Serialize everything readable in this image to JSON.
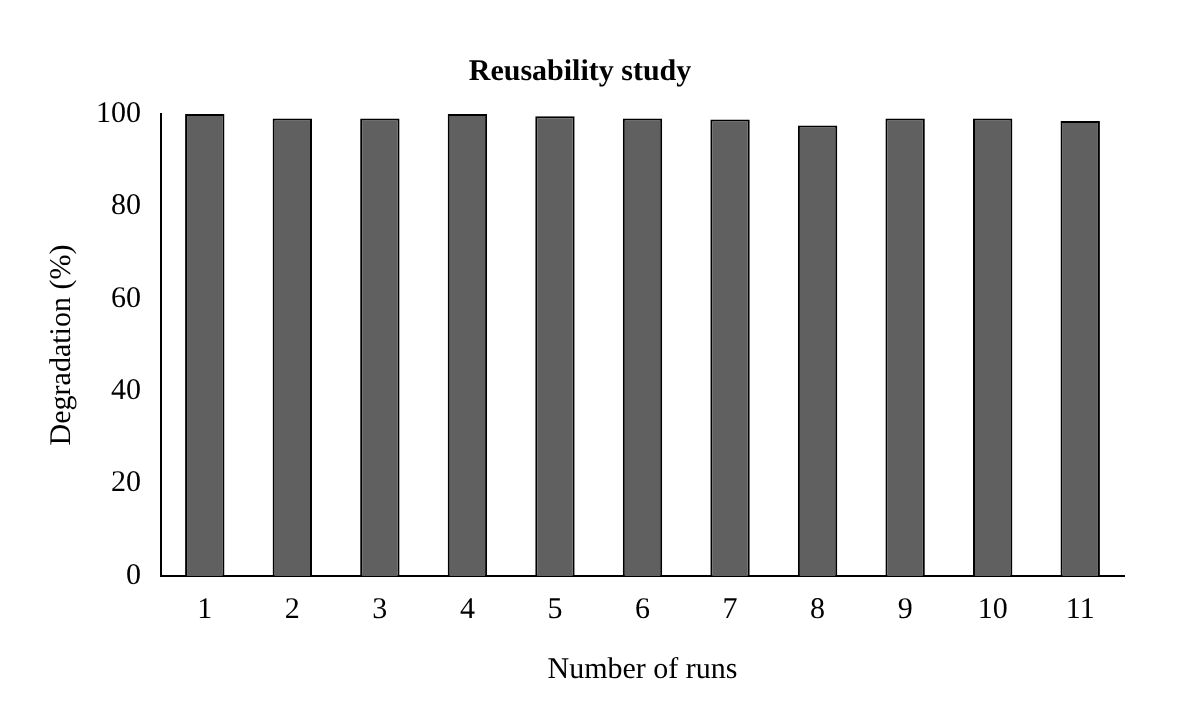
{
  "chart_data": {
    "type": "bar",
    "title": "Reusability study",
    "xlabel": "Number of runs",
    "ylabel": "Degradation (%)",
    "categories": [
      "1",
      "2",
      "3",
      "4",
      "5",
      "6",
      "7",
      "8",
      "9",
      "10",
      "11"
    ],
    "values": [
      100,
      99,
      99,
      100,
      99.5,
      99,
      98.8,
      97.5,
      99,
      99,
      98.5
    ],
    "color": "#606060",
    "ylim": [
      0,
      100
    ],
    "yticks": [
      0,
      20,
      40,
      60,
      80,
      100
    ],
    "grid": false,
    "legend": false
  }
}
